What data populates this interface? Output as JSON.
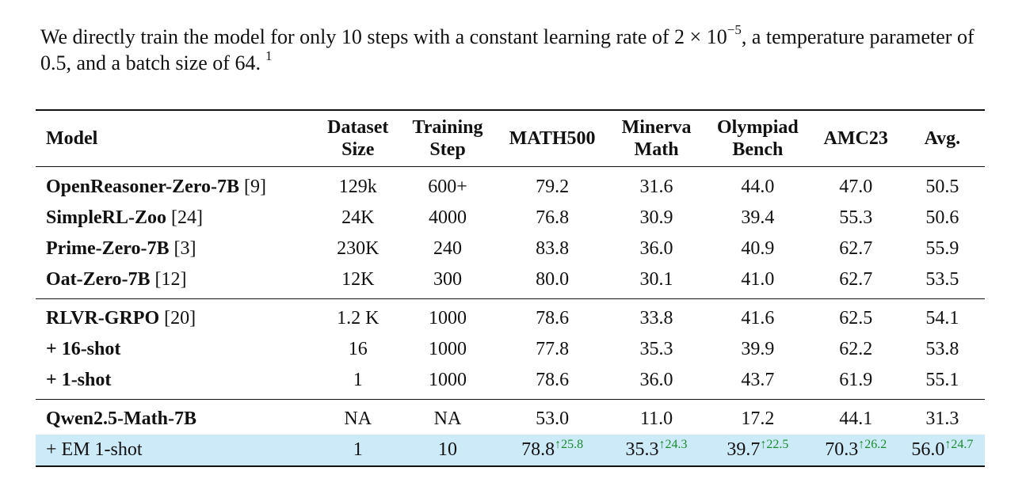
{
  "paragraph": {
    "text_before": "We directly train the model for only 10 steps with a constant learning rate of 2 × 10",
    "exponent": "−5",
    "text_after": ", a temperature parameter of 0.5, and a batch size of 64.",
    "footnote_mark": "1"
  },
  "table": {
    "headers": [
      {
        "line1": "Model",
        "line2": ""
      },
      {
        "line1": "Dataset",
        "line2": "Size"
      },
      {
        "line1": "Training",
        "line2": "Step"
      },
      {
        "line1": "MATH500",
        "line2": ""
      },
      {
        "line1": "Minerva",
        "line2": "Math"
      },
      {
        "line1": "Olympiad",
        "line2": "Bench"
      },
      {
        "line1": "AMC23",
        "line2": ""
      },
      {
        "line1": "Avg.",
        "line2": ""
      }
    ],
    "rows": [
      {
        "name": "OpenReasoner-Zero-7B",
        "ref": "[9]",
        "size": "129k",
        "step": "600+",
        "math500": "79.2",
        "minerva": "31.6",
        "olympiad": "44.0",
        "amc23": "47.0",
        "avg": "50.5"
      },
      {
        "name": "SimpleRL-Zoo",
        "ref": "[24]",
        "size": "24K",
        "step": "4000",
        "math500": "76.8",
        "minerva": "30.9",
        "olympiad": "39.4",
        "amc23": "55.3",
        "avg": "50.6"
      },
      {
        "name": "Prime-Zero-7B",
        "ref": "[3]",
        "size": "230K",
        "step": "240",
        "math500": "83.8",
        "minerva": "36.0",
        "olympiad": "40.9",
        "amc23": "62.7",
        "avg": "55.9"
      },
      {
        "name": "Oat-Zero-7B",
        "ref": "[12]",
        "size": "12K",
        "step": "300",
        "math500": "80.0",
        "minerva": "30.1",
        "olympiad": "41.0",
        "amc23": "62.7",
        "avg": "53.5"
      },
      {
        "name": "RLVR-GRPO",
        "ref": "[20]",
        "size": "1.2 K",
        "step": "1000",
        "math500": "78.6",
        "minerva": "33.8",
        "olympiad": "41.6",
        "amc23": "62.5",
        "avg": "54.1"
      },
      {
        "prefix": "+ ",
        "name": "16-shot",
        "ref": "",
        "size": "16",
        "step": "1000",
        "math500": "77.8",
        "minerva": "35.3",
        "olympiad": "39.9",
        "amc23": "62.2",
        "avg": "53.8"
      },
      {
        "prefix": "+ ",
        "name": "1-shot",
        "ref": "",
        "size": "1",
        "step": "1000",
        "math500": "78.6",
        "minerva": "36.0",
        "olympiad": "43.7",
        "amc23": "61.9",
        "avg": "55.1"
      },
      {
        "name": "Qwen2.5-Math-7B",
        "ref": "",
        "size": "NA",
        "step": "NA",
        "math500": "53.0",
        "minerva": "11.0",
        "olympiad": "17.2",
        "amc23": "44.1",
        "avg": "31.3"
      }
    ],
    "highlight": {
      "name": "+ EM 1-shot",
      "size": "1",
      "step": "10",
      "math500": "78.8",
      "math500_gain": "↑25.8",
      "minerva": "35.3",
      "minerva_gain": "↑24.3",
      "olympiad": "39.7",
      "olympiad_gain": "↑22.5",
      "amc23": "70.3",
      "amc23_gain": "↑26.2",
      "avg": "56.0",
      "avg_gain": "↑24.7"
    },
    "highlight_color": "#cdeaf8",
    "gain_color": "#1b8a2e"
  }
}
